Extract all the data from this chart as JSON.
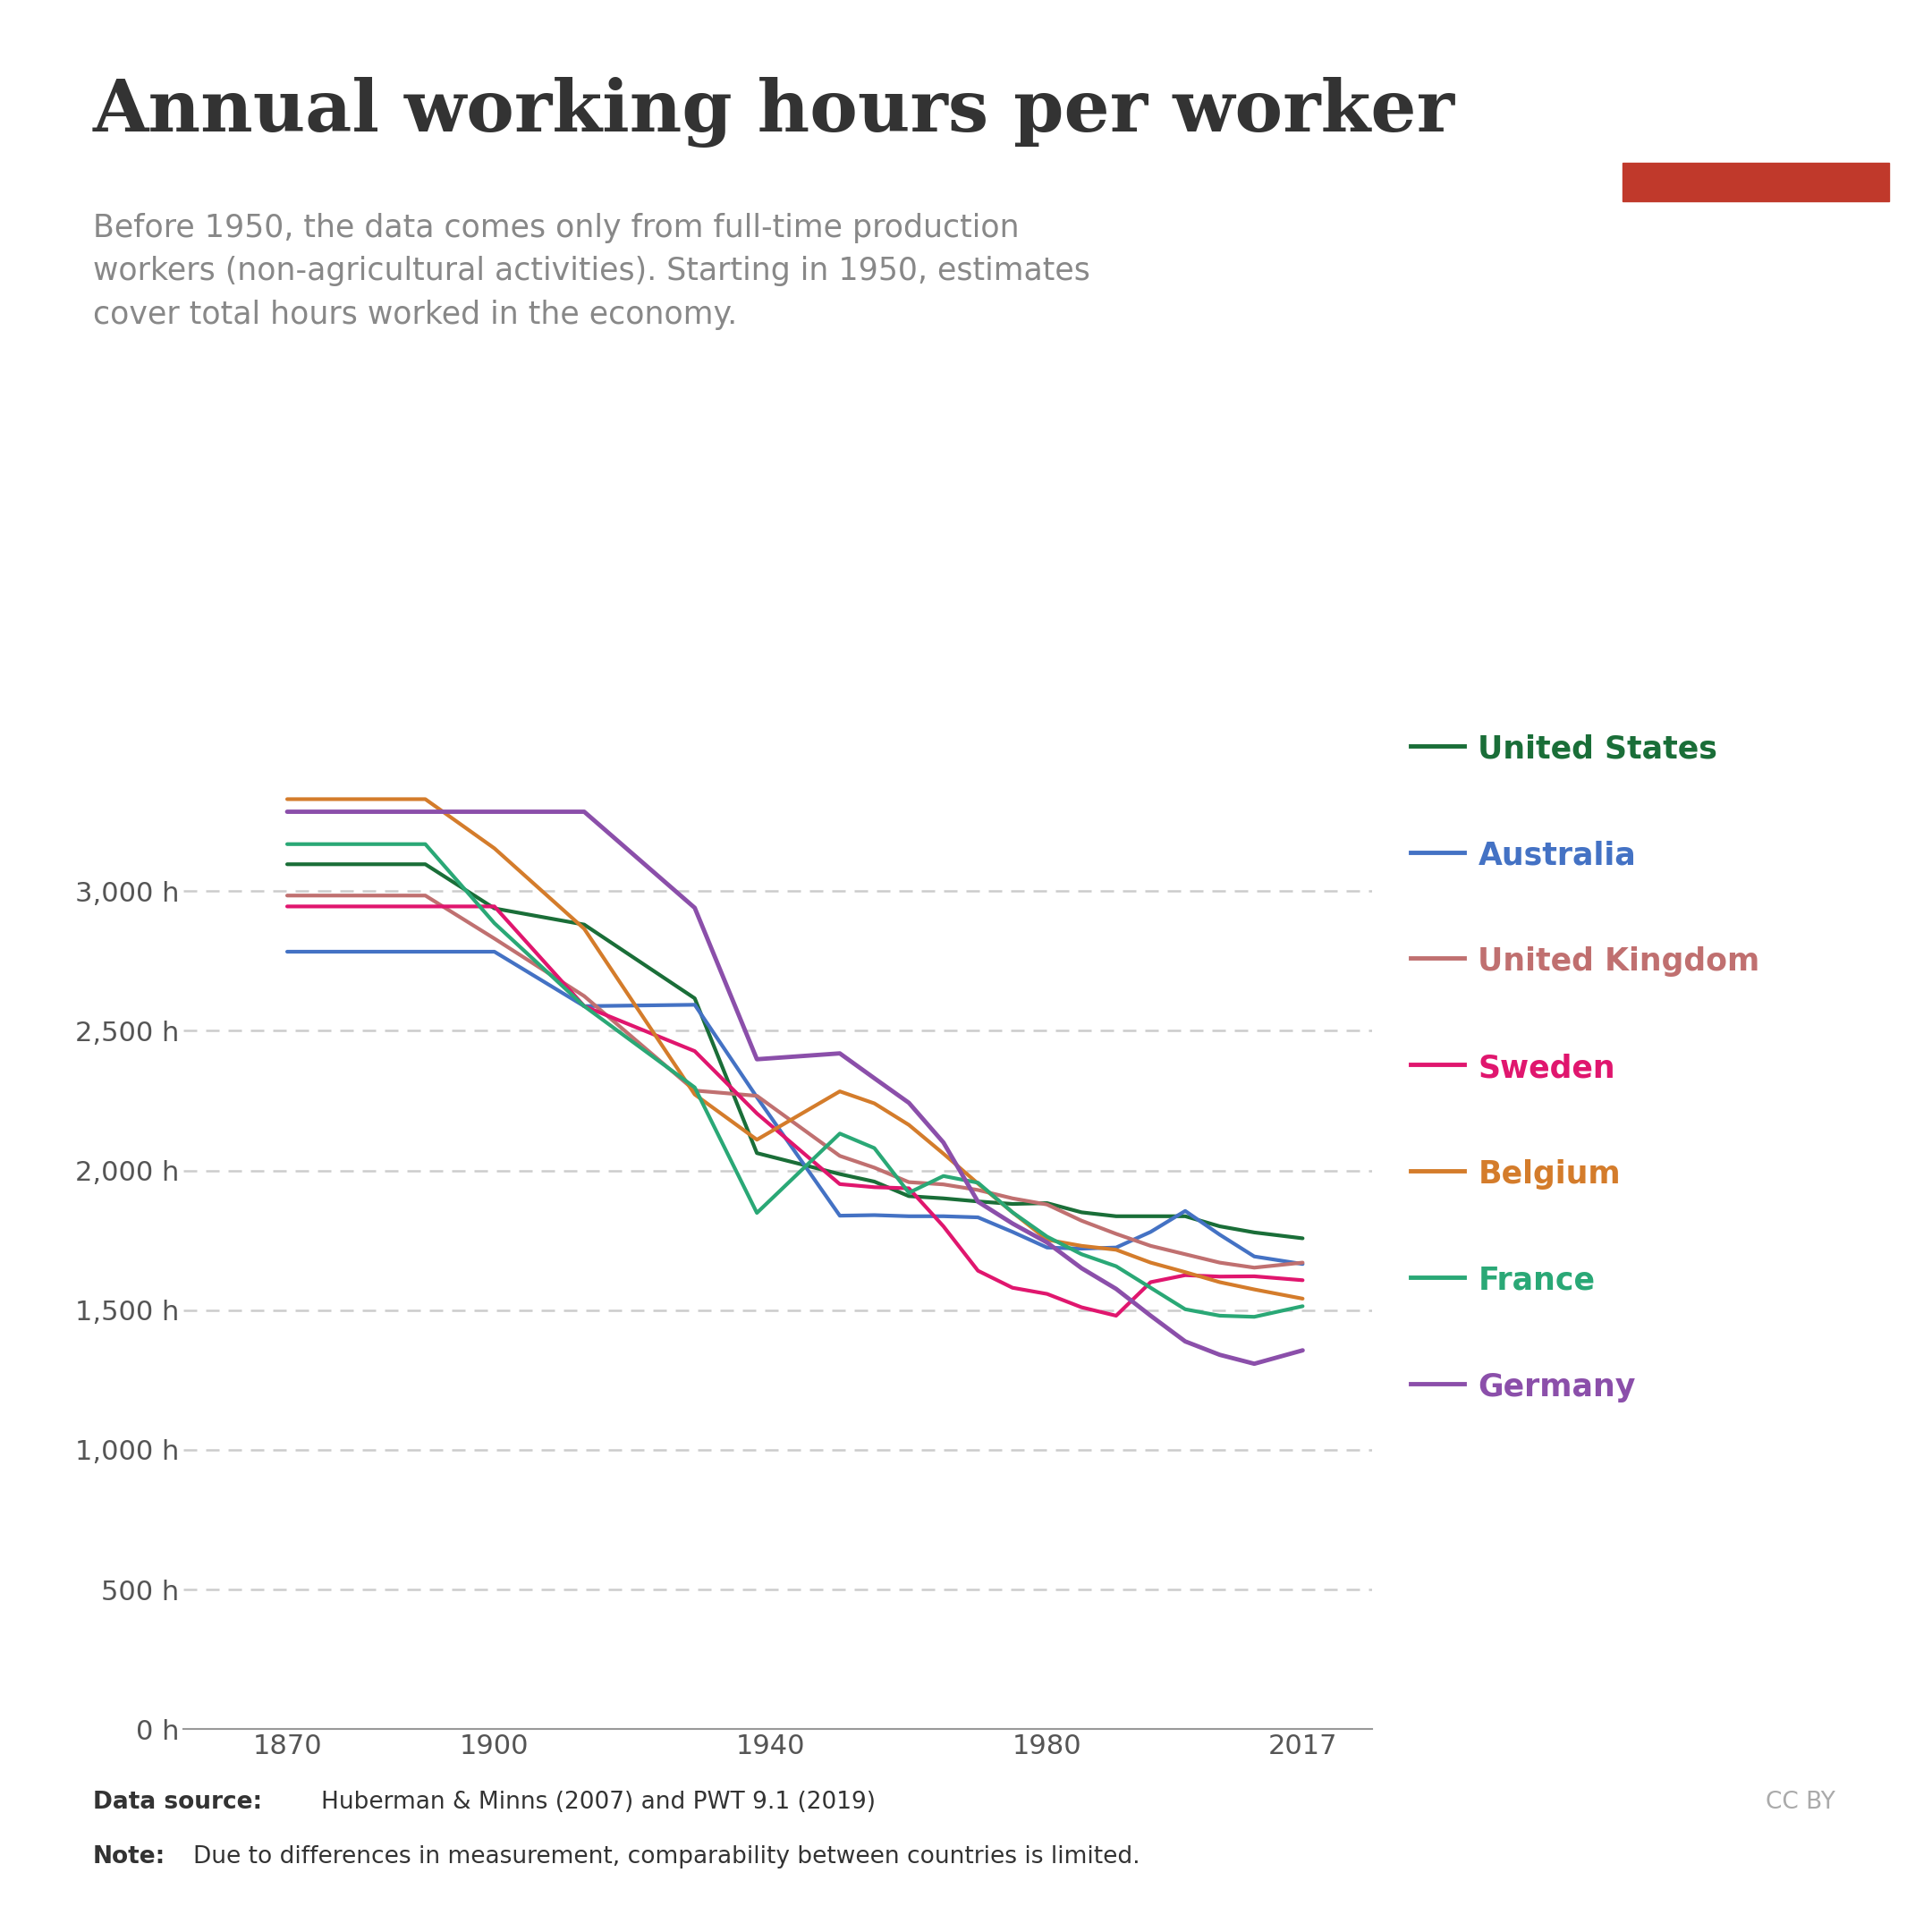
{
  "title": "Annual working hours per worker",
  "subtitle": "Before 1950, the data comes only from full-time production\nworkers (non-agricultural activities). Starting in 1950, estimates\ncover total hours worked in the economy.",
  "datasource_bold": "Data source:",
  "datasource_normal": " Huberman & Minns (2007) and PWT 9.1 (2019)",
  "note_bold": "Note:",
  "note_normal": " Due to differences in measurement, comparability between countries is limited.",
  "cc": "CC BY",
  "background_color": "#ffffff",
  "yticks": [
    0,
    500,
    1000,
    1500,
    2000,
    2500,
    3000
  ],
  "ylim": [
    0,
    3700
  ],
  "xticks": [
    1870,
    1900,
    1940,
    1980,
    2017
  ],
  "xlim": [
    1855,
    2027
  ],
  "countries": [
    {
      "name": "United States",
      "color": "#1a6e38",
      "linewidth": 3.0,
      "data": {
        "1870": 3096,
        "1880": 3096,
        "1890": 3096,
        "1900": 2938,
        "1913": 2880,
        "1929": 2616,
        "1938": 2062,
        "1950": 1987,
        "1955": 1960,
        "1960": 1908,
        "1965": 1900,
        "1970": 1889,
        "1975": 1880,
        "1980": 1883,
        "1985": 1850,
        "1990": 1836,
        "1995": 1836,
        "2000": 1836,
        "2005": 1800,
        "2010": 1778,
        "2017": 1757
      }
    },
    {
      "name": "Australia",
      "color": "#4472c4",
      "linewidth": 3.0,
      "data": {
        "1870": 2783,
        "1880": 2783,
        "1890": 2783,
        "1900": 2783,
        "1913": 2588,
        "1929": 2593,
        "1938": 2262,
        "1950": 1838,
        "1955": 1840,
        "1960": 1836,
        "1965": 1836,
        "1970": 1832,
        "1975": 1780,
        "1980": 1724,
        "1985": 1720,
        "1990": 1724,
        "1995": 1780,
        "2000": 1855,
        "2005": 1770,
        "2010": 1692,
        "2017": 1665
      }
    },
    {
      "name": "United Kingdom",
      "color": "#c07070",
      "linewidth": 3.0,
      "data": {
        "1870": 2984,
        "1880": 2984,
        "1890": 2984,
        "1900": 2830,
        "1913": 2624,
        "1929": 2286,
        "1938": 2267,
        "1950": 2052,
        "1955": 2010,
        "1960": 1958,
        "1965": 1950,
        "1970": 1930,
        "1975": 1900,
        "1980": 1878,
        "1985": 1820,
        "1990": 1773,
        "1995": 1730,
        "2000": 1700,
        "2005": 1670,
        "2010": 1652,
        "2017": 1670
      }
    },
    {
      "name": "Sweden",
      "color": "#e0166e",
      "linewidth": 3.0,
      "data": {
        "1870": 2945,
        "1880": 2945,
        "1890": 2945,
        "1900": 2945,
        "1913": 2588,
        "1929": 2427,
        "1938": 2204,
        "1950": 1951,
        "1955": 1940,
        "1960": 1936,
        "1965": 1800,
        "1970": 1641,
        "1975": 1580,
        "1980": 1558,
        "1985": 1510,
        "1990": 1480,
        "1995": 1600,
        "2000": 1625,
        "2005": 1620,
        "2010": 1621,
        "2017": 1607
      }
    },
    {
      "name": "Belgium",
      "color": "#d47c2b",
      "linewidth": 3.0,
      "data": {
        "1870": 3329,
        "1880": 3329,
        "1890": 3329,
        "1900": 3153,
        "1913": 2865,
        "1929": 2272,
        "1938": 2110,
        "1950": 2283,
        "1955": 2240,
        "1960": 2163,
        "1965": 2060,
        "1970": 1953,
        "1975": 1850,
        "1980": 1752,
        "1985": 1730,
        "1990": 1716,
        "1995": 1670,
        "2000": 1636,
        "2005": 1600,
        "2010": 1574,
        "2017": 1541
      }
    },
    {
      "name": "France",
      "color": "#2aa876",
      "linewidth": 3.0,
      "data": {
        "1870": 3168,
        "1880": 3168,
        "1890": 3168,
        "1900": 2885,
        "1913": 2588,
        "1929": 2297,
        "1938": 1848,
        "1950": 2132,
        "1955": 2080,
        "1960": 1920,
        "1965": 1980,
        "1970": 1956,
        "1975": 1850,
        "1980": 1763,
        "1985": 1700,
        "1990": 1657,
        "1995": 1580,
        "2000": 1503,
        "2005": 1480,
        "2010": 1476,
        "2017": 1514
      }
    },
    {
      "name": "Germany",
      "color": "#8b4faa",
      "linewidth": 3.5,
      "data": {
        "1870": 3284,
        "1880": 3284,
        "1890": 3284,
        "1900": 3284,
        "1913": 3284,
        "1929": 2940,
        "1938": 2398,
        "1950": 2419,
        "1955": 2330,
        "1960": 2242,
        "1965": 2100,
        "1970": 1888,
        "1975": 1810,
        "1980": 1742,
        "1985": 1650,
        "1990": 1576,
        "1995": 1480,
        "2000": 1388,
        "2005": 1340,
        "2010": 1308,
        "2017": 1356
      }
    }
  ],
  "legend_order": [
    "United States",
    "Australia",
    "United Kingdom",
    "Sweden",
    "Belgium",
    "France",
    "Germany"
  ]
}
